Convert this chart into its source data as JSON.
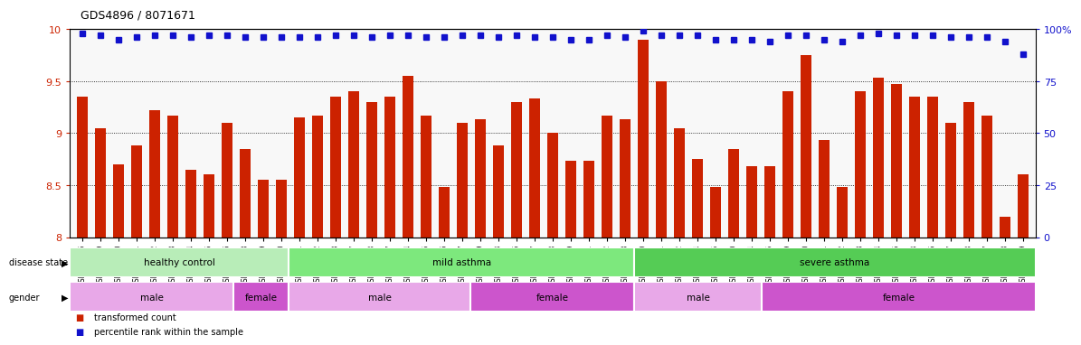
{
  "title": "GDS4896 / 8071671",
  "samples": [
    "GSM665386",
    "GSM665389",
    "GSM665390",
    "GSM665391",
    "GSM665392",
    "GSM665393",
    "GSM665394",
    "GSM665395",
    "GSM665396",
    "GSM665398",
    "GSM665399",
    "GSM665400",
    "GSM665401",
    "GSM665402",
    "GSM665403",
    "GSM665387",
    "GSM665388",
    "GSM665397",
    "GSM665404",
    "GSM665405",
    "GSM665406",
    "GSM665407",
    "GSM665409",
    "GSM665413",
    "GSM665416",
    "GSM665417",
    "GSM665418",
    "GSM665419",
    "GSM665421",
    "GSM665422",
    "GSM665408",
    "GSM665410",
    "GSM665411",
    "GSM665412",
    "GSM665414",
    "GSM665415",
    "GSM665420",
    "GSM665424",
    "GSM665425",
    "GSM665429",
    "GSM665430",
    "GSM665431",
    "GSM665432",
    "GSM665433",
    "GSM665434",
    "GSM665435",
    "GSM665423",
    "GSM665426",
    "GSM665427",
    "GSM665428",
    "GSM665437",
    "GSM665438",
    "GSM665439"
  ],
  "bar_values": [
    9.35,
    9.05,
    8.7,
    8.88,
    9.22,
    9.17,
    8.65,
    8.6,
    9.1,
    8.85,
    8.55,
    8.55,
    9.15,
    9.17,
    9.35,
    9.4,
    9.3,
    9.35,
    9.55,
    9.17,
    8.48,
    9.1,
    9.13,
    8.88,
    9.3,
    9.33,
    9.0,
    8.73,
    8.73,
    9.17,
    9.13,
    9.9,
    9.5,
    9.05,
    8.75,
    8.48,
    8.85,
    8.68,
    8.68,
    9.4,
    9.75,
    8.93,
    8.48,
    9.4,
    9.53,
    9.47,
    9.35,
    9.35,
    9.1,
    9.3,
    9.17,
    8.2,
    8.6
  ],
  "percentile_values_pct": [
    98,
    97,
    95,
    96,
    97,
    97,
    96,
    97,
    97,
    96,
    96,
    96,
    96,
    96,
    97,
    97,
    96,
    97,
    97,
    96,
    96,
    97,
    97,
    96,
    97,
    96,
    96,
    95,
    95,
    97,
    96,
    99,
    97,
    97,
    97,
    95,
    95,
    95,
    94,
    97,
    97,
    95,
    94,
    97,
    98,
    97,
    97,
    97,
    96,
    96,
    96,
    94,
    88
  ],
  "ylim_left": [
    8.0,
    10.0
  ],
  "ylim_right": [
    0,
    100
  ],
  "yticks_left": [
    8.0,
    8.5,
    9.0,
    9.5,
    10.0
  ],
  "ytick_labels_left": [
    "8",
    "8.5",
    "9",
    "9.5",
    "10"
  ],
  "yticks_right": [
    0,
    25,
    50,
    75,
    100
  ],
  "ytick_labels_right": [
    "0",
    "25",
    "50",
    "75",
    "100%"
  ],
  "bar_color": "#cc2200",
  "dot_color": "#1111cc",
  "grid_values": [
    8.5,
    9.0,
    9.5
  ],
  "disease_groups": [
    "healthy control",
    "mild asthma",
    "severe asthma"
  ],
  "disease_bounds": [
    0,
    12,
    31,
    53
  ],
  "disease_colors": [
    "#b8edb8",
    "#7de87d",
    "#55cc55"
  ],
  "gender_groups": [
    "male",
    "female",
    "male",
    "female",
    "male",
    "female"
  ],
  "gender_bounds": [
    0,
    9,
    12,
    22,
    31,
    38,
    53
  ],
  "gender_color_male": "#e8a8e8",
  "gender_color_female": "#cc55cc",
  "legend_label_bar": "transformed count",
  "legend_label_dot": "percentile rank within the sample",
  "background_color": "#f0f0f0"
}
